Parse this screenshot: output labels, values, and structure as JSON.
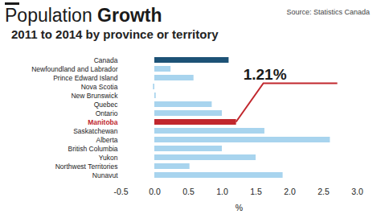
{
  "chart_data": {
    "type": "bar",
    "title": "Population Growth",
    "subtitle": "2011 to 2014 by province or territory",
    "source": "Source: Statistics Canada",
    "orientation": "horizontal",
    "categories": [
      "Canada",
      "Newfoundland and Labrador",
      "Prince Edward Island",
      "Nova Scotia",
      "New Brunswick",
      "Quebec",
      "Ontario",
      "Manitoba",
      "Saskatchewan",
      "Alberta",
      "British Columbia",
      "Yukon",
      "Northwest Territories",
      "Nunavut"
    ],
    "values": [
      1.1,
      0.24,
      0.58,
      -0.02,
      0.02,
      0.85,
      1.0,
      1.21,
      1.63,
      2.6,
      1.0,
      1.5,
      0.52,
      1.9
    ],
    "colors": [
      "#1d5276",
      "#a8d4ee",
      "#a8d4ee",
      "#a8d4ee",
      "#a8d4ee",
      "#a8d4ee",
      "#a8d4ee",
      "#c1272d",
      "#a8d4ee",
      "#a8d4ee",
      "#a8d4ee",
      "#a8d4ee",
      "#a8d4ee",
      "#a8d4ee"
    ],
    "x_label": "%",
    "xlim": [
      -0.5,
      3.0
    ],
    "xticks": [
      -0.5,
      {
        "value": 0,
        "label": "0.0"
      },
      0.5,
      {
        "value": 1,
        "label": "1.0"
      },
      1.5,
      {
        "value": 2,
        "label": "2.0"
      },
      2.5,
      {
        "value": 3,
        "label": "3.0"
      }
    ],
    "grid": false,
    "annotation": {
      "text": "1.21%",
      "category": "Manitoba",
      "value": 1.21,
      "color": "#c1272d"
    }
  }
}
